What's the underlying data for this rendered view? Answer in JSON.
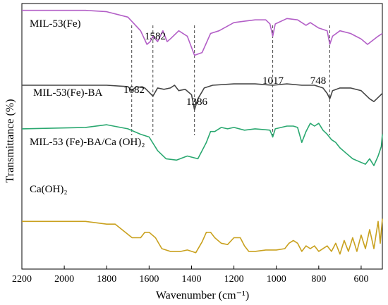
{
  "chart_data": {
    "type": "line",
    "title": "",
    "xlabel": "Wavenumber (cm⁻¹)",
    "ylabel": "Transmittance (%)",
    "xlim": [
      2200,
      500
    ],
    "x_reversed": true,
    "y_ticks_shown": false,
    "grid": false,
    "x_ticks": [
      2200,
      2000,
      1800,
      1600,
      1400,
      1200,
      1000,
      800,
      600
    ],
    "x_tick_labels": [
      "2200",
      "2000",
      "1800",
      "1600",
      "1400",
      "1200",
      "1000",
      "800",
      "600"
    ],
    "peak_lines": [
      1682,
      1582,
      1386,
      1017,
      748
    ],
    "peak_labels": [
      "1682",
      "1582",
      "1386",
      "1017",
      "748"
    ],
    "series": [
      {
        "name": "MIL-53(Fe)",
        "color": "#b35fc7",
        "points": [
          [
            2200,
            95
          ],
          [
            1900,
            95
          ],
          [
            1800,
            94
          ],
          [
            1700,
            90
          ],
          [
            1640,
            80
          ],
          [
            1610,
            70
          ],
          [
            1595,
            72
          ],
          [
            1582,
            76
          ],
          [
            1560,
            72
          ],
          [
            1535,
            80
          ],
          [
            1515,
            72
          ],
          [
            1500,
            74
          ],
          [
            1460,
            80
          ],
          [
            1420,
            76
          ],
          [
            1386,
            62
          ],
          [
            1350,
            64
          ],
          [
            1310,
            78
          ],
          [
            1270,
            80
          ],
          [
            1200,
            86
          ],
          [
            1150,
            87
          ],
          [
            1100,
            88
          ],
          [
            1050,
            88
          ],
          [
            1030,
            85
          ],
          [
            1017,
            76
          ],
          [
            1005,
            85
          ],
          [
            950,
            89
          ],
          [
            900,
            88
          ],
          [
            860,
            84
          ],
          [
            840,
            86
          ],
          [
            800,
            82
          ],
          [
            760,
            80
          ],
          [
            748,
            70
          ],
          [
            735,
            76
          ],
          [
            700,
            80
          ],
          [
            650,
            78
          ],
          [
            600,
            74
          ],
          [
            570,
            70
          ],
          [
            520,
            76
          ],
          [
            500,
            78
          ]
        ]
      },
      {
        "name": "MIL-53(Fe)-BA",
        "color": "#454545",
        "points": [
          [
            2200,
            40
          ],
          [
            1800,
            40
          ],
          [
            1700,
            39
          ],
          [
            1682,
            36
          ],
          [
            1660,
            39
          ],
          [
            1620,
            38
          ],
          [
            1582,
            32
          ],
          [
            1560,
            38
          ],
          [
            1530,
            37
          ],
          [
            1500,
            38
          ],
          [
            1480,
            40
          ],
          [
            1460,
            36
          ],
          [
            1430,
            37
          ],
          [
            1400,
            33
          ],
          [
            1386,
            22
          ],
          [
            1370,
            30
          ],
          [
            1340,
            38
          ],
          [
            1300,
            40
          ],
          [
            1200,
            41
          ],
          [
            1100,
            41
          ],
          [
            1017,
            40
          ],
          [
            950,
            41
          ],
          [
            880,
            40
          ],
          [
            820,
            40
          ],
          [
            780,
            38
          ],
          [
            760,
            34
          ],
          [
            748,
            30
          ],
          [
            735,
            36
          ],
          [
            700,
            38
          ],
          [
            650,
            38
          ],
          [
            600,
            36
          ],
          [
            560,
            30
          ],
          [
            540,
            28
          ],
          [
            500,
            34
          ]
        ]
      },
      {
        "name": "MIL-53 (Fe)-BA/Ca (OH)₂",
        "color": "#2aa870",
        "points": [
          [
            2200,
            8
          ],
          [
            1900,
            9
          ],
          [
            1800,
            11
          ],
          [
            1700,
            8
          ],
          [
            1640,
            4
          ],
          [
            1600,
            2
          ],
          [
            1560,
            -8
          ],
          [
            1520,
            -14
          ],
          [
            1470,
            -15
          ],
          [
            1420,
            -12
          ],
          [
            1370,
            -14
          ],
          [
            1330,
            -2
          ],
          [
            1310,
            6
          ],
          [
            1290,
            6
          ],
          [
            1260,
            9
          ],
          [
            1230,
            8
          ],
          [
            1200,
            9
          ],
          [
            1150,
            7
          ],
          [
            1100,
            8
          ],
          [
            1030,
            7
          ],
          [
            1017,
            2
          ],
          [
            1005,
            8
          ],
          [
            950,
            10
          ],
          [
            920,
            10
          ],
          [
            900,
            9
          ],
          [
            880,
            -2
          ],
          [
            860,
            6
          ],
          [
            840,
            12
          ],
          [
            820,
            10
          ],
          [
            800,
            12
          ],
          [
            780,
            7
          ],
          [
            760,
            4
          ],
          [
            740,
            0
          ],
          [
            720,
            -2
          ],
          [
            700,
            -6
          ],
          [
            670,
            -10
          ],
          [
            640,
            -14
          ],
          [
            610,
            -16
          ],
          [
            580,
            -18
          ],
          [
            560,
            -14
          ],
          [
            540,
            -19
          ],
          [
            520,
            -12
          ],
          [
            505,
            -5
          ],
          [
            500,
            4
          ]
        ]
      },
      {
        "name": "Ca(OH)₂",
        "color": "#c9a11e",
        "points": [
          [
            2200,
            -60
          ],
          [
            1900,
            -60
          ],
          [
            1800,
            -62
          ],
          [
            1760,
            -62
          ],
          [
            1720,
            -67
          ],
          [
            1680,
            -72
          ],
          [
            1640,
            -72
          ],
          [
            1620,
            -68
          ],
          [
            1600,
            -68
          ],
          [
            1570,
            -72
          ],
          [
            1540,
            -80
          ],
          [
            1500,
            -82
          ],
          [
            1450,
            -82
          ],
          [
            1420,
            -81
          ],
          [
            1380,
            -83
          ],
          [
            1350,
            -75
          ],
          [
            1330,
            -68
          ],
          [
            1310,
            -68
          ],
          [
            1290,
            -72
          ],
          [
            1260,
            -76
          ],
          [
            1230,
            -77
          ],
          [
            1200,
            -72
          ],
          [
            1170,
            -72
          ],
          [
            1150,
            -78
          ],
          [
            1130,
            -82
          ],
          [
            1100,
            -82
          ],
          [
            1050,
            -81
          ],
          [
            1000,
            -81
          ],
          [
            960,
            -80
          ],
          [
            940,
            -76
          ],
          [
            920,
            -74
          ],
          [
            900,
            -76
          ],
          [
            880,
            -82
          ],
          [
            860,
            -78
          ],
          [
            840,
            -80
          ],
          [
            820,
            -78
          ],
          [
            800,
            -82
          ],
          [
            760,
            -78
          ],
          [
            740,
            -82
          ],
          [
            720,
            -76
          ],
          [
            700,
            -84
          ],
          [
            680,
            -74
          ],
          [
            660,
            -82
          ],
          [
            640,
            -72
          ],
          [
            620,
            -82
          ],
          [
            600,
            -70
          ],
          [
            580,
            -80
          ],
          [
            560,
            -66
          ],
          [
            540,
            -80
          ],
          [
            520,
            -60
          ],
          [
            510,
            -76
          ],
          [
            500,
            -58
          ]
        ]
      }
    ]
  }
}
